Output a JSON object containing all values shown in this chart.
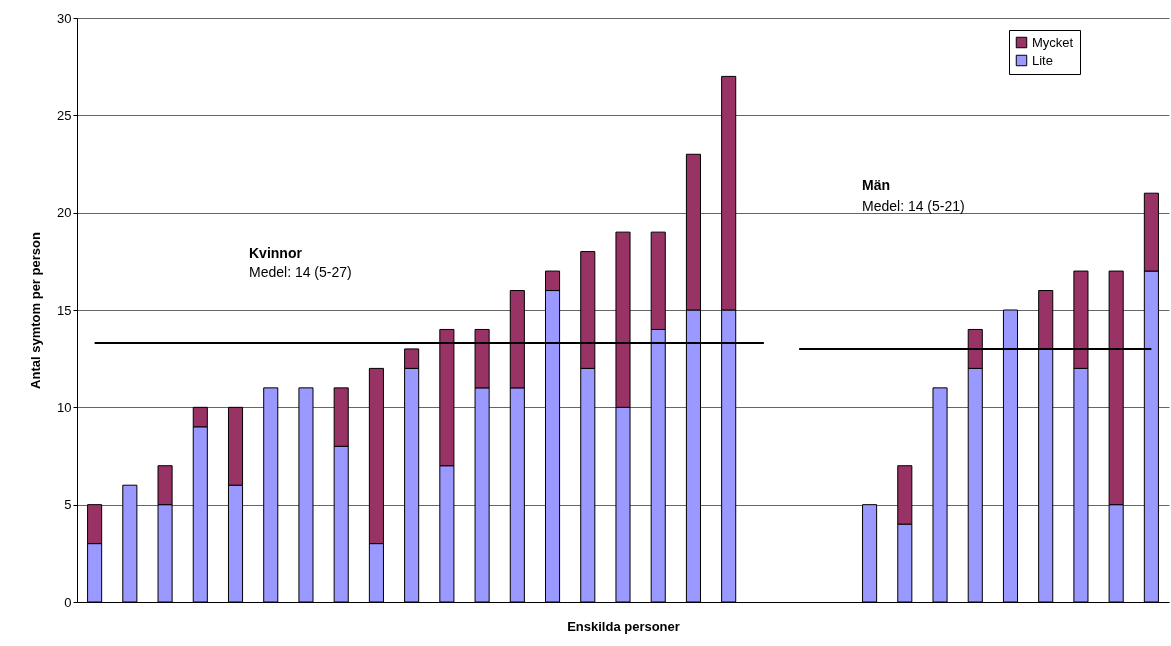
{
  "chart_data": {
    "type": "bar",
    "stacked": true,
    "xlabel": "Enskilda personer",
    "ylabel": "Antal symtom per person",
    "categories": [
      null,
      null,
      null,
      null,
      null,
      null,
      null,
      null,
      null,
      null,
      null,
      null,
      null,
      null,
      null,
      null,
      null,
      null,
      null,
      null,
      null,
      null,
      null,
      null,
      null,
      null,
      null,
      null,
      null,
      null,
      null
    ],
    "series": [
      {
        "name": "Lite",
        "color": "#9999ff",
        "values": [
          3,
          6,
          5,
          9,
          6,
          11,
          11,
          8,
          3,
          12,
          7,
          11,
          11,
          16,
          12,
          10,
          14,
          15,
          15,
          null,
          null,
          null,
          5,
          4,
          11,
          12,
          15,
          13,
          12,
          5,
          17
        ]
      },
      {
        "name": "Mycket",
        "color": "#993366",
        "values": [
          2,
          null,
          2,
          1,
          4,
          null,
          null,
          3,
          9,
          1,
          7,
          3,
          5,
          1,
          6,
          9,
          5,
          8,
          12,
          null,
          null,
          null,
          null,
          3,
          null,
          2,
          null,
          3,
          5,
          12,
          4
        ]
      },
      {
        "type": "line",
        "color": "#000000",
        "values": [
          13.3,
          13.3,
          13.3,
          13.3,
          13.3,
          13.3,
          13.3,
          13.3,
          13.3,
          13.3,
          13.3,
          13.3,
          13.3,
          13.3,
          13.3,
          13.3,
          13.3,
          13.3,
          13.3,
          13.3,
          null,
          null,
          null,
          null,
          null,
          null,
          null,
          null,
          null,
          null,
          null
        ]
      },
      {
        "type": "line",
        "color": "#000000",
        "values": [
          null,
          null,
          null,
          null,
          null,
          null,
          null,
          null,
          null,
          null,
          null,
          null,
          null,
          null,
          null,
          null,
          null,
          null,
          null,
          null,
          13,
          13,
          13,
          13,
          13,
          13,
          13,
          13,
          13,
          13,
          13
        ]
      }
    ],
    "ylim": [
      0,
      30
    ],
    "yticks": [
      0,
      5,
      10,
      15,
      20,
      25,
      30
    ],
    "grid": "y",
    "legend": "top right",
    "annotations": [
      "Kvinnor",
      "Medel: 14 (5-27)",
      "Män",
      "Medel: 14 (5-21)"
    ]
  }
}
